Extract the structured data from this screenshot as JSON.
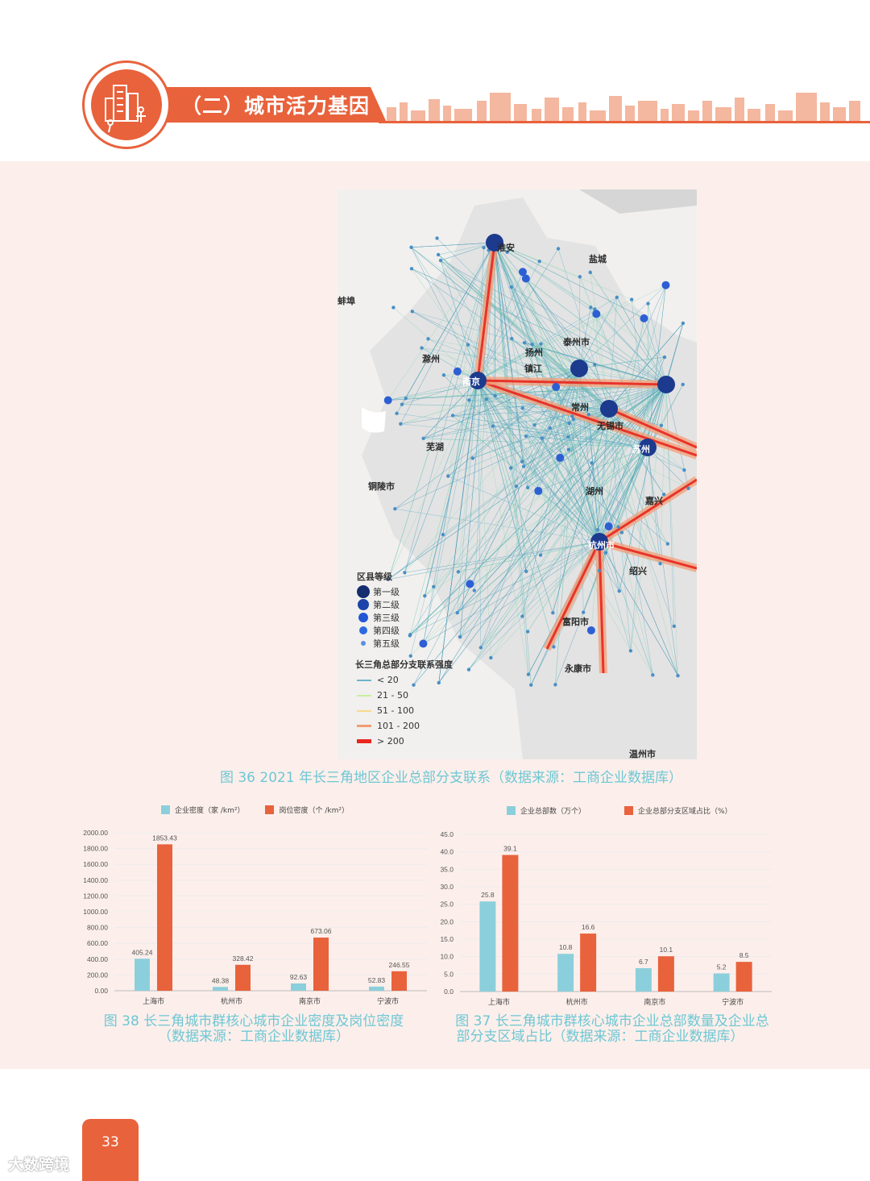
{
  "header": {
    "section_title": "（二）城市活力基因",
    "accent_color": "#e8623c"
  },
  "map": {
    "cities": {
      "huaian": "淮安",
      "yancheng": "盐城",
      "bengbu": "蚌埠",
      "taizhou": "泰州市",
      "yangzhou": "扬州",
      "chuzhou": "滁州",
      "zhenjiang": "镇江",
      "nanjing": "南京",
      "changzhou": "常州",
      "wuxi": "无锡市",
      "wuhu": "芜湖",
      "suzhou": "苏州",
      "tongling": "铜陵市",
      "huzhou": "湖州",
      "jiaxing": "嘉兴",
      "hangzhou": "杭州市",
      "shaoxing": "绍兴",
      "fuyang": "富阳市",
      "yongkang": "永康市",
      "wenzhou": "温州市"
    },
    "legend": {
      "level_title": "区县等级",
      "levels": [
        "第一级",
        "第二级",
        "第三级",
        "第四级",
        "第五级"
      ],
      "strength_title": "长三角总部分支联系强度",
      "strengths": [
        "< 20",
        "21 - 50",
        "51 - 100",
        "101 - 200",
        "> 200"
      ],
      "strength_colors": [
        "#6fb3c8",
        "#c9efa0",
        "#fbd98c",
        "#f59b72",
        "#e8271f"
      ]
    },
    "caption": "图 36  2021 年长三角地区企业总部分支联系（数据来源：工商企业数据库）"
  },
  "chart_left": {
    "caption_line1": "图 38  长三角城市群核心城市企业密度及岗位密度",
    "caption_line2": "（数据来源：工商企业数据库）",
    "legend": [
      "企业密度（家 /km²）",
      "岗位密度（个 /km²）"
    ]
  },
  "chart_right": {
    "caption_line1": "图 37  长三角城市群核心城市企业总部数量及企业总",
    "caption_line2": "部分支区域占比（数据来源：工商企业数据库）",
    "legend": [
      "企业总部数（万个）",
      "企业总部分支区域占比（%）"
    ]
  },
  "chart_data": [
    {
      "type": "bar",
      "categories": [
        "上海市",
        "杭州市",
        "南京市",
        "宁波市"
      ],
      "series": [
        {
          "name": "企业密度（家 /km²）",
          "values": [
            405.24,
            48.38,
            92.63,
            52.83
          ],
          "color": "#8ccfdc"
        },
        {
          "name": "岗位密度（个 /km²）",
          "values": [
            1853.43,
            328.42,
            673.06,
            246.55
          ],
          "color": "#e8623c"
        }
      ],
      "yticks": [
        "0.00",
        "200.00",
        "400.00",
        "600.00",
        "800.00",
        "1000.00",
        "1200.00",
        "1400.00",
        "1600.00",
        "1800.00",
        "2000.00"
      ],
      "ylim": [
        0,
        2000
      ],
      "legend_position": "top"
    },
    {
      "type": "bar",
      "categories": [
        "上海市",
        "杭州市",
        "南京市",
        "宁波市"
      ],
      "series": [
        {
          "name": "企业总部数（万个）",
          "values": [
            25.8,
            10.8,
            6.7,
            5.2
          ],
          "color": "#8ccfdc"
        },
        {
          "name": "企业总部分支区域占比（%）",
          "values": [
            39.1,
            16.6,
            10.1,
            8.5
          ],
          "color": "#e8623c"
        }
      ],
      "yticks": [
        "0.0",
        "5.0",
        "10.0",
        "15.0",
        "20.0",
        "25.0",
        "30.0",
        "35.0",
        "40.0",
        "45.0"
      ],
      "ylim": [
        0,
        45
      ],
      "legend_position": "top"
    }
  ],
  "footer": {
    "page_number": "33",
    "watermark": "大数跨境"
  }
}
